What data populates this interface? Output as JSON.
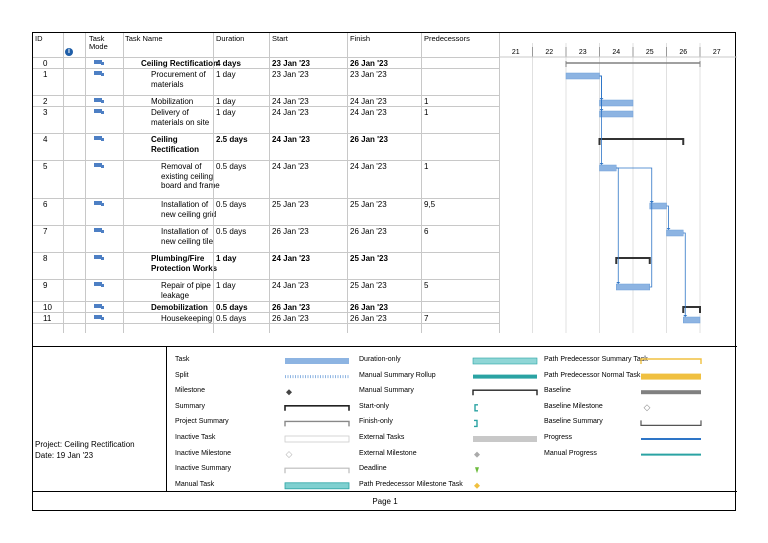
{
  "headers": {
    "id": "ID",
    "mode": "Task\nMode",
    "name": "Task Name",
    "duration": "Duration",
    "start": "Start",
    "finish": "Finish",
    "pred": "Predecessors",
    "days": [
      "21",
      "22",
      "23",
      "24",
      "25",
      "26",
      "27"
    ]
  },
  "tasks": [
    {
      "id": "0",
      "name": [
        "Ceiling Rectification"
      ],
      "indent": 0,
      "summary": true,
      "duration": "4 days",
      "start": "23 Jan '23",
      "finish": "26 Jan '23",
      "pred": "",
      "gantt": {
        "kind": "project",
        "from": 23,
        "to": 27
      }
    },
    {
      "id": "1",
      "name": [
        "Procurement of",
        "materials"
      ],
      "indent": 1,
      "summary": false,
      "duration": "1 day",
      "start": "23 Jan '23",
      "finish": "23 Jan '23",
      "pred": "",
      "gantt": {
        "kind": "task",
        "from": 23,
        "to": 24
      }
    },
    {
      "id": "2",
      "name": [
        "Mobilization"
      ],
      "indent": 1,
      "summary": false,
      "duration": "1 day",
      "start": "24 Jan '23",
      "finish": "24 Jan '23",
      "pred": "1",
      "gantt": {
        "kind": "task",
        "from": 24,
        "to": 25
      }
    },
    {
      "id": "3",
      "name": [
        "Delivery of",
        "materials on site"
      ],
      "indent": 1,
      "summary": false,
      "duration": "1 day",
      "start": "24 Jan '23",
      "finish": "24 Jan '23",
      "pred": "1",
      "gantt": {
        "kind": "task",
        "from": 24,
        "to": 25
      }
    },
    {
      "id": "4",
      "name": [
        "Ceiling",
        "Rectification"
      ],
      "indent": 1,
      "summary": true,
      "duration": "2.5 days",
      "start": "24 Jan '23",
      "finish": "26 Jan '23",
      "pred": "",
      "gantt": {
        "kind": "summary",
        "from": 24,
        "to": 26.5
      }
    },
    {
      "id": "5",
      "name": [
        "Removal of",
        "existing ceiling",
        "board and frame"
      ],
      "indent": 2,
      "summary": false,
      "duration": "0.5 days",
      "start": "24 Jan '23",
      "finish": "24 Jan '23",
      "pred": "1",
      "gantt": {
        "kind": "task",
        "from": 24,
        "to": 24.5
      }
    },
    {
      "id": "6",
      "name": [
        "Installation of",
        "new ceiling grid"
      ],
      "indent": 2,
      "summary": false,
      "duration": "0.5 days",
      "start": "25 Jan '23",
      "finish": "25 Jan '23",
      "pred": "9,5",
      "gantt": {
        "kind": "task",
        "from": 25.5,
        "to": 26
      }
    },
    {
      "id": "7",
      "name": [
        "Installation of",
        "new ceiling tile"
      ],
      "indent": 2,
      "summary": false,
      "duration": "0.5 days",
      "start": "26 Jan '23",
      "finish": "26 Jan '23",
      "pred": "6",
      "gantt": {
        "kind": "task",
        "from": 26,
        "to": 26.5
      }
    },
    {
      "id": "8",
      "name": [
        "Plumbing/Fire",
        "Protection Works"
      ],
      "indent": 1,
      "summary": true,
      "duration": "1 day",
      "start": "24 Jan '23",
      "finish": "25 Jan '23",
      "pred": "",
      "gantt": {
        "kind": "summary",
        "from": 24.5,
        "to": 25.5
      }
    },
    {
      "id": "9",
      "name": [
        "Repair of pipe",
        "leakage"
      ],
      "indent": 2,
      "summary": false,
      "duration": "1 day",
      "start": "24 Jan '23",
      "finish": "25 Jan '23",
      "pred": "5",
      "gantt": {
        "kind": "task",
        "from": 24.5,
        "to": 25.5
      }
    },
    {
      "id": "10",
      "name": [
        "Demobilization"
      ],
      "indent": 1,
      "summary": true,
      "duration": "0.5 days",
      "start": "26 Jan '23",
      "finish": "26 Jan '23",
      "pred": "",
      "gantt": {
        "kind": "summary",
        "from": 26.5,
        "to": 27
      }
    },
    {
      "id": "11",
      "name": [
        "Housekeeping"
      ],
      "indent": 2,
      "summary": false,
      "duration": "0.5 days",
      "start": "26 Jan '23",
      "finish": "26 Jan '23",
      "pred": "7",
      "gantt": {
        "kind": "task",
        "from": 26.5,
        "to": 27
      }
    }
  ],
  "legend": {
    "col1": [
      "Task",
      "Split",
      "Milestone",
      "Summary",
      "Project Summary",
      "Inactive Task",
      "Inactive Milestone",
      "Inactive Summary",
      "Manual Task"
    ],
    "col2": [
      "Duration-only",
      "Manual Summary Rollup",
      "Manual Summary",
      "Start-only",
      "Finish-only",
      "External Tasks",
      "External Milestone",
      "Deadline",
      "Path Predecessor Milestone Task"
    ],
    "col3": [
      "Path Predecessor Summary Task",
      "Path Predecessor Normal Task",
      "Baseline",
      "Baseline Milestone",
      "Baseline Summary",
      "Progress",
      "Manual Progress"
    ]
  },
  "project": {
    "line1": "Project: Ceiling Rectification",
    "line2": "Date: 19 Jan '23"
  },
  "footer": "Page 1",
  "colors": {
    "task": "#8db4e2",
    "taskBorder": "#6f9fd8",
    "summary": "#333333",
    "link": "#2e75c7",
    "manualRollup": "#2aa3a3",
    "pathSummary": "#f0c040",
    "baseline": "#808080"
  }
}
